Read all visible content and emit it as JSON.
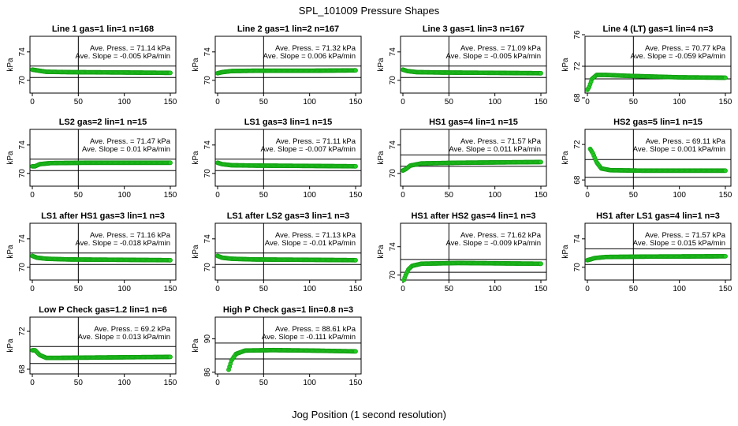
{
  "figure": {
    "title": "SPL_101009  Pressure Shapes",
    "xlabel": "Jog Position (1 second resolution)"
  },
  "chart_data": [
    {
      "type": "scatter",
      "title": "Line 1 gas=1 lin=1 n=168",
      "ylabel": "kPa",
      "xlim": [
        0,
        150
      ],
      "xticks": [
        0,
        50,
        100,
        150
      ],
      "ylim": [
        68.2,
        76.2
      ],
      "yticks": [
        70,
        74
      ],
      "hlines": [
        70.4,
        72
      ],
      "vline": 50,
      "avg_text": "Ave. Press. = 71.14 kPa",
      "slope_text": "Ave. Slope = -0.005 kPa/min",
      "series": [
        {
          "name": "",
          "shape": [
            [
              0,
              71.5
            ],
            [
              5,
              71.4
            ],
            [
              15,
              71.2
            ],
            [
              40,
              71.15
            ],
            [
              100,
              71.1
            ],
            [
              150,
              71.05
            ]
          ]
        }
      ]
    },
    {
      "type": "scatter",
      "title": "Line 2 gas=1 lin=2 n=167",
      "ylabel": "kPa",
      "xlim": [
        0,
        150
      ],
      "xticks": [
        0,
        50,
        100,
        150
      ],
      "ylim": [
        68.2,
        76.2
      ],
      "yticks": [
        70,
        74
      ],
      "hlines": [
        70.4,
        72
      ],
      "vline": 50,
      "avg_text": "Ave. Press. = 71.32 kPa",
      "slope_text": "Ave. Slope = 0.006 kPa/min",
      "series": [
        {
          "name": "",
          "shape": [
            [
              0,
              71.0
            ],
            [
              5,
              71.15
            ],
            [
              15,
              71.3
            ],
            [
              40,
              71.35
            ],
            [
              100,
              71.35
            ],
            [
              150,
              71.4
            ]
          ]
        }
      ]
    },
    {
      "type": "scatter",
      "title": "Line 3 gas=1 lin=3 n=167",
      "ylabel": "kPa",
      "xlim": [
        0,
        150
      ],
      "xticks": [
        0,
        50,
        100,
        150
      ],
      "ylim": [
        68.2,
        76.2
      ],
      "yticks": [
        70,
        74
      ],
      "hlines": [
        70.4,
        72
      ],
      "vline": 50,
      "avg_text": "Ave. Press. = 71.09 kPa",
      "slope_text": "Ave. Slope = -0.005 kPa/min",
      "series": [
        {
          "name": "",
          "shape": [
            [
              0,
              71.5
            ],
            [
              5,
              71.3
            ],
            [
              15,
              71.15
            ],
            [
              40,
              71.1
            ],
            [
              100,
              71.05
            ],
            [
              150,
              71.0
            ]
          ]
        }
      ]
    },
    {
      "type": "scatter",
      "title": "Line 4 (LT) gas=1 lin=4 n=3",
      "ylabel": "kPa",
      "xlim": [
        0,
        150
      ],
      "xticks": [
        0,
        50,
        100,
        150
      ],
      "ylim": [
        68.6,
        75.8
      ],
      "yticks": [
        68,
        72,
        76
      ],
      "hlines": [
        70.4,
        72
      ],
      "vline": 50,
      "avg_text": "Ave. Press. = 70.77 kPa",
      "slope_text": "Ave. Slope = -0.059 kPa/min",
      "series": [
        {
          "name": "",
          "shape": [
            [
              0,
              69.0
            ],
            [
              2,
              69.4
            ],
            [
              5,
              70.4
            ],
            [
              10,
              70.9
            ],
            [
              20,
              70.9
            ],
            [
              40,
              70.8
            ],
            [
              100,
              70.6
            ],
            [
              150,
              70.55
            ]
          ]
        }
      ]
    },
    {
      "type": "scatter",
      "title": "LS2 gas=2 lin=1 n=15",
      "ylabel": "kPa",
      "xlim": [
        0,
        150
      ],
      "xticks": [
        0,
        50,
        100,
        150
      ],
      "ylim": [
        68.2,
        76.2
      ],
      "yticks": [
        70,
        74
      ],
      "hlines": [
        70.4,
        72
      ],
      "vline": 50,
      "avg_text": "Ave. Press. = 71.47 kPa",
      "slope_text": "Ave. Slope = 0.01 kPa/min",
      "series": [
        {
          "name": "",
          "shape": [
            [
              0,
              71.0
            ],
            [
              3,
              71.0
            ],
            [
              8,
              71.3
            ],
            [
              20,
              71.45
            ],
            [
              60,
              71.5
            ],
            [
              150,
              71.5
            ]
          ]
        }
      ]
    },
    {
      "type": "scatter",
      "title": "LS1 gas=3 lin=1 n=15",
      "ylabel": "kPa",
      "xlim": [
        0,
        150
      ],
      "xticks": [
        0,
        50,
        100,
        150
      ],
      "ylim": [
        68.2,
        76.2
      ],
      "yticks": [
        70,
        74
      ],
      "hlines": [
        70.4,
        72
      ],
      "vline": 50,
      "avg_text": "Ave. Press. = 71.11 kPa",
      "slope_text": "Ave. Slope = -0.007 kPa/min",
      "series": [
        {
          "name": "",
          "shape": [
            [
              0,
              71.5
            ],
            [
              5,
              71.3
            ],
            [
              15,
              71.15
            ],
            [
              40,
              71.1
            ],
            [
              100,
              71.05
            ],
            [
              150,
              71.0
            ]
          ]
        }
      ]
    },
    {
      "type": "scatter",
      "title": "HS1 gas=4 lin=1 n=15",
      "ylabel": "kPa",
      "xlim": [
        0,
        150
      ],
      "xticks": [
        0,
        50,
        100,
        150
      ],
      "ylim": [
        68.2,
        76.2
      ],
      "yticks": [
        70,
        74
      ],
      "hlines": [
        71.0,
        72.6
      ],
      "vline": 50,
      "avg_text": "Ave. Press. = 71.57 kPa",
      "slope_text": "Ave. Slope = 0.011 kPa/min",
      "series": [
        {
          "name": "",
          "shape": [
            [
              0,
              70.4
            ],
            [
              3,
              70.6
            ],
            [
              8,
              71.1
            ],
            [
              20,
              71.4
            ],
            [
              60,
              71.5
            ],
            [
              150,
              71.6
            ]
          ]
        }
      ]
    },
    {
      "type": "scatter",
      "title": "HS2 gas=5 lin=1 n=15",
      "ylabel": "kPa",
      "xlim": [
        0,
        150
      ],
      "xticks": [
        0,
        50,
        100,
        150
      ],
      "ylim": [
        67.3,
        73.7
      ],
      "yticks": [
        68,
        72
      ],
      "hlines": [
        68.3,
        70.3
      ],
      "vline": 50,
      "avg_text": "Ave. Press. = 69.11 kPa",
      "slope_text": "Ave. Slope = 0.001 kPa/min",
      "series": [
        {
          "name": "",
          "shape": [
            [
              3,
              71.5
            ],
            [
              6,
              71.0
            ],
            [
              10,
              70.0
            ],
            [
              15,
              69.3
            ],
            [
              25,
              69.1
            ],
            [
              60,
              69.05
            ],
            [
              150,
              69.05
            ]
          ]
        }
      ]
    },
    {
      "type": "scatter",
      "title": "LS1 after HS1 gas=3 lin=1 n=3",
      "ylabel": "kPa",
      "xlim": [
        0,
        150
      ],
      "xticks": [
        0,
        50,
        100,
        150
      ],
      "ylim": [
        68.2,
        76.2
      ],
      "yticks": [
        70,
        74
      ],
      "hlines": [
        70.4,
        72
      ],
      "vline": 50,
      "avg_text": "Ave. Press. = 71.16 kPa",
      "slope_text": "Ave. Slope = -0.018 kPa/min",
      "series": [
        {
          "name": "",
          "shape": [
            [
              0,
              71.6
            ],
            [
              5,
              71.35
            ],
            [
              15,
              71.2
            ],
            [
              40,
              71.1
            ],
            [
              100,
              71.05
            ],
            [
              150,
              71.0
            ]
          ]
        }
      ]
    },
    {
      "type": "scatter",
      "title": "LS1 after LS2 gas=3 lin=1 n=3",
      "ylabel": "kPa",
      "xlim": [
        0,
        150
      ],
      "xticks": [
        0,
        50,
        100,
        150
      ],
      "ylim": [
        68.2,
        76.2
      ],
      "yticks": [
        70,
        74
      ],
      "hlines": [
        70.4,
        72
      ],
      "vline": 50,
      "avg_text": "Ave. Press. = 71.13 kPa",
      "slope_text": "Ave. Slope = -0.01 kPa/min",
      "series": [
        {
          "name": "",
          "shape": [
            [
              0,
              71.6
            ],
            [
              5,
              71.35
            ],
            [
              15,
              71.2
            ],
            [
              40,
              71.1
            ],
            [
              100,
              71.05
            ],
            [
              150,
              71.0
            ]
          ]
        }
      ]
    },
    {
      "type": "scatter",
      "title": "HS1 after HS2 gas=4 lin=1 n=3",
      "ylabel": "kPa",
      "xlim": [
        0,
        150
      ],
      "xticks": [
        0,
        50,
        100,
        150
      ],
      "ylim": [
        69.3,
        77.3
      ],
      "yticks": [
        70,
        74
      ],
      "hlines": [
        70.4,
        72.2
      ],
      "vline": 50,
      "avg_text": "Ave. Press. = 71.62 kPa",
      "slope_text": "Ave. Slope = -0.009 kPa/min",
      "series": [
        {
          "name": "",
          "shape": [
            [
              1,
              69.3
            ],
            [
              3,
              70.0
            ],
            [
              6,
              70.8
            ],
            [
              10,
              71.3
            ],
            [
              20,
              71.6
            ],
            [
              60,
              71.7
            ],
            [
              150,
              71.6
            ]
          ]
        }
      ]
    },
    {
      "type": "scatter",
      "title": "HS1 after LS1 gas=4 lin=1 n=3",
      "ylabel": "kPa",
      "xlim": [
        0,
        150
      ],
      "xticks": [
        0,
        50,
        100,
        150
      ],
      "ylim": [
        68.2,
        76.2
      ],
      "yticks": [
        70,
        74
      ],
      "hlines": [
        70.4,
        72.6
      ],
      "vline": 50,
      "avg_text": "Ave. Press. = 71.57 kPa",
      "slope_text": "Ave. Slope = 0.015 kPa/min",
      "series": [
        {
          "name": "",
          "shape": [
            [
              0,
              71.0
            ],
            [
              3,
              71.1
            ],
            [
              8,
              71.3
            ],
            [
              20,
              71.45
            ],
            [
              60,
              71.5
            ],
            [
              150,
              71.55
            ]
          ]
        }
      ]
    },
    {
      "type": "scatter",
      "title": "Low P Check gas=1.2 lin=1 n=6",
      "ylabel": "kPa",
      "xlim": [
        0,
        150
      ],
      "xticks": [
        0,
        50,
        100,
        150
      ],
      "ylim": [
        67.5,
        73.5
      ],
      "yticks": [
        68,
        72
      ],
      "hlines": [
        68.6,
        70.4
      ],
      "vline": 50,
      "avg_text": "Ave. Press. = 69.2 kPa",
      "slope_text": "Ave. Slope = 0.013 kPa/min",
      "series": [
        {
          "name": "",
          "shape": [
            [
              0,
              70.0
            ],
            [
              3,
              70.0
            ],
            [
              8,
              69.5
            ],
            [
              15,
              69.2
            ],
            [
              30,
              69.2
            ],
            [
              150,
              69.3
            ]
          ]
        }
      ]
    },
    {
      "type": "scatter",
      "title": "High P Check gas=1 lin=0.8 n=3",
      "ylabel": "kPa",
      "xlim": [
        0,
        150
      ],
      "xticks": [
        0,
        50,
        100,
        150
      ],
      "ylim": [
        85.8,
        92.6
      ],
      "yticks": [
        86,
        90
      ],
      "hlines": [
        87.6,
        89.5
      ],
      "vline": 50,
      "avg_text": "Ave. Press. = 88.61 kPa",
      "slope_text": "Ave. Slope = -0.111 kPa/min",
      "series": [
        {
          "name": "",
          "shape": [
            [
              12,
              86.3
            ],
            [
              15,
              87.4
            ],
            [
              20,
              88.2
            ],
            [
              30,
              88.6
            ],
            [
              60,
              88.65
            ],
            [
              100,
              88.6
            ],
            [
              150,
              88.5
            ]
          ]
        }
      ]
    }
  ]
}
